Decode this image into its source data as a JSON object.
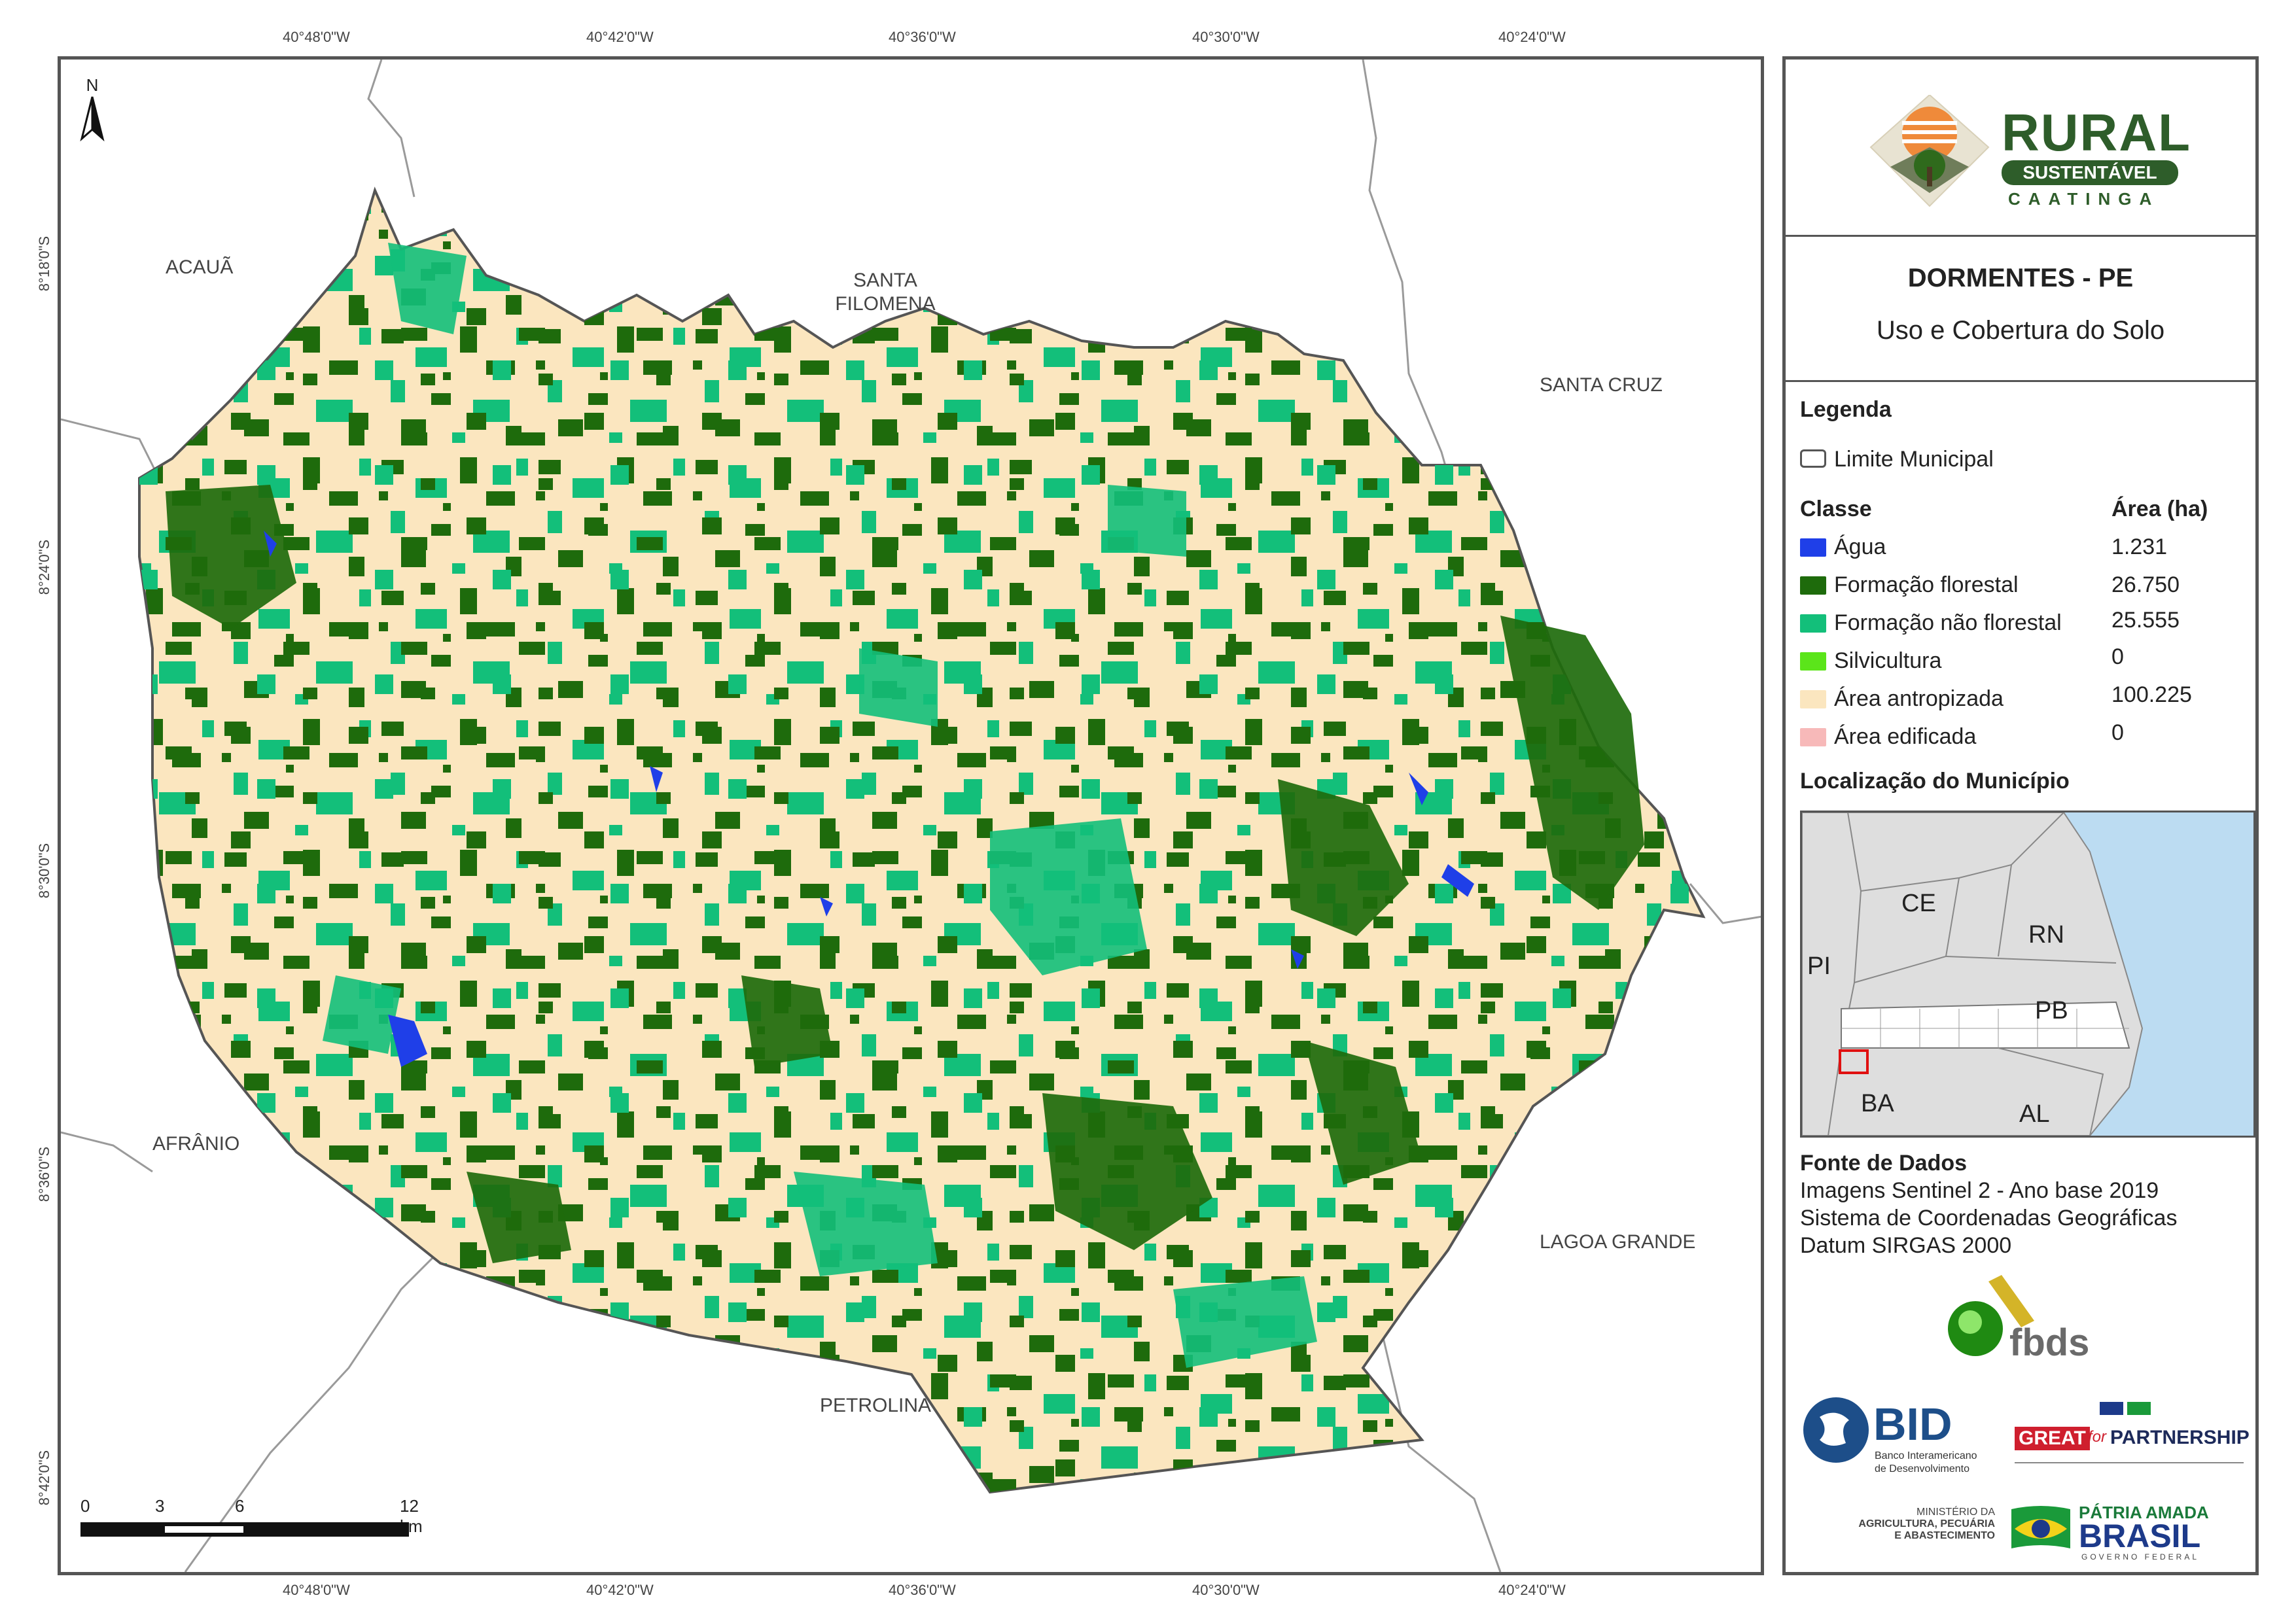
{
  "map": {
    "coords_top": [
      "40°48'0\"W",
      "40°42'0\"W",
      "40°36'0\"W",
      "40°30'0\"W",
      "40°24'0\"W"
    ],
    "coords_bottom": [
      "40°48'0\"W",
      "40°42'0\"W",
      "40°36'0\"W",
      "40°30'0\"W",
      "40°24'0\"W"
    ],
    "coords_left": [
      "8°18'0\"S",
      "8°24'0\"S",
      "8°30'0\"S",
      "8°36'0\"S",
      "8°42'0\"S"
    ],
    "north_label": "N",
    "places": {
      "acaua": "ACAUÃ",
      "santa_filomena_1": "SANTA",
      "santa_filomena_2": "FILOMENA",
      "santa_cruz": "SANTA CRUZ",
      "afranio": "AFRÂNIO",
      "lagoa_grande": "LAGOA GRANDE",
      "petrolina": "PETROLINA"
    },
    "scale": {
      "l0": "0",
      "l1": "3",
      "l2": "6",
      "l3": "12 km"
    }
  },
  "panel": {
    "logo_rural": {
      "line1": "RURAL",
      "line2": "SUSTENTÁVEL",
      "line3": "CAATINGA"
    },
    "title": "DORMENTES - PE",
    "subtitle": "Uso e Cobertura do Solo",
    "legend_title": "Legenda",
    "limite_label": "Limite Municipal",
    "classe_header": "Classe",
    "area_header": "Área (ha)",
    "classes": [
      {
        "label": "Água",
        "area": "1.231",
        "color": "#1f3fe8"
      },
      {
        "label": "Formação florestal",
        "area": "26.750",
        "color": "#1e6b0c"
      },
      {
        "label": "Formação não florestal",
        "area": "25.555",
        "color": "#13bf7a"
      },
      {
        "label": "Silvicultura",
        "area": "0",
        "color": "#5be51a"
      },
      {
        "label": "Área antropizada",
        "area": "100.225",
        "color": "#fbe6bf"
      },
      {
        "label": "Área edificada",
        "area": "0",
        "color": "#f7b9b9"
      }
    ],
    "location_title": "Localização do Município",
    "states": {
      "ce": "CE",
      "rn": "RN",
      "pi": "PI",
      "pb": "PB",
      "ba": "BA",
      "al": "AL"
    },
    "source_title": "Fonte de Dados",
    "source_lines": [
      "Imagens Sentinel 2 - Ano base 2019",
      "Sistema de Coordenadas Geográficas",
      "Datum SIRGAS 2000"
    ],
    "fbds": "fbds",
    "bid": "BID",
    "bid_sub1": "Banco Interamericano",
    "bid_sub2": "de Desenvolvimento",
    "great": "GREAT",
    "great_for": "for",
    "great_partnership": "PARTNERSHIP",
    "ministerio_1": "MINISTÉRIO DA",
    "ministerio_2": "AGRICULTURA, PECUÁRIA",
    "ministerio_3": "E ABASTECIMENTO",
    "patria": "PÁTRIA AMADA",
    "brasil": "BRASIL",
    "governo": "GOVERNO FEDERAL"
  }
}
